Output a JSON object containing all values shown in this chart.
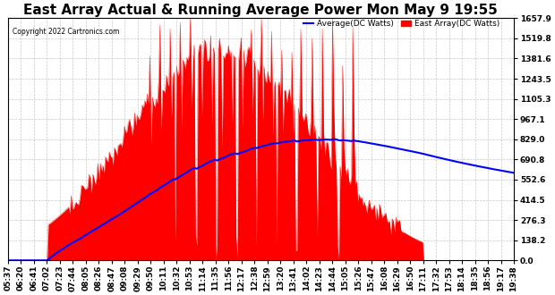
{
  "title": "East Array Actual & Running Average Power Mon May 9 19:55",
  "copyright": "Copyright 2022 Cartronics.com",
  "ylabel_right_values": [
    0.0,
    138.2,
    276.3,
    414.5,
    552.6,
    690.8,
    829.0,
    967.1,
    1105.3,
    1243.5,
    1381.6,
    1519.8,
    1657.9
  ],
  "ymax": 1657.9,
  "ymin": 0.0,
  "legend_avg_label": "Average(DC Watts)",
  "legend_east_label": "East Array(DC Watts)",
  "avg_color": "#0000ff",
  "east_color": "#ff0000",
  "bg_color": "#ffffff",
  "grid_color": "#bbbbbb",
  "title_fontsize": 11,
  "tick_label_fontsize": 6.5,
  "x_tick_labels": [
    "05:37",
    "06:20",
    "06:41",
    "07:02",
    "07:23",
    "07:44",
    "08:05",
    "08:26",
    "08:47",
    "09:08",
    "09:29",
    "09:50",
    "10:11",
    "10:32",
    "10:53",
    "11:14",
    "11:35",
    "11:56",
    "12:17",
    "12:38",
    "12:59",
    "13:20",
    "13:41",
    "14:02",
    "14:23",
    "14:44",
    "15:05",
    "15:26",
    "15:47",
    "16:08",
    "16:29",
    "16:50",
    "17:11",
    "17:32",
    "17:53",
    "18:14",
    "18:35",
    "18:56",
    "19:17",
    "19:38"
  ],
  "peak_watt": 1657.9,
  "avg_peak_watt": 829.0,
  "n_points": 400
}
